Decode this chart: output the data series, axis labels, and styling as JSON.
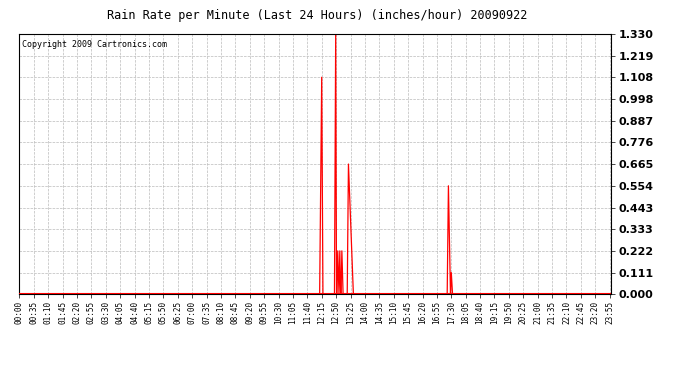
{
  "title": "Rain Rate per Minute (Last 24 Hours) (inches/hour) 20090922",
  "copyright": "Copyright 2009 Cartronics.com",
  "bg_color": "#ffffff",
  "plot_bg_color": "#ffffff",
  "line_color": "#ff0000",
  "grid_color": "#bbbbbb",
  "yticks": [
    0.0,
    0.111,
    0.222,
    0.333,
    0.443,
    0.554,
    0.665,
    0.776,
    0.887,
    0.998,
    1.108,
    1.219,
    1.33
  ],
  "ymax": 1.33,
  "ymin": 0.0,
  "xtick_labels": [
    "00:00",
    "00:35",
    "01:10",
    "01:45",
    "02:20",
    "02:55",
    "03:30",
    "04:05",
    "04:40",
    "05:15",
    "05:50",
    "06:25",
    "07:00",
    "07:35",
    "08:10",
    "08:45",
    "09:20",
    "09:55",
    "10:30",
    "11:05",
    "11:40",
    "12:15",
    "12:50",
    "13:25",
    "14:00",
    "14:35",
    "15:10",
    "15:45",
    "16:20",
    "16:55",
    "17:30",
    "18:05",
    "18:40",
    "19:15",
    "19:50",
    "20:25",
    "21:00",
    "21:35",
    "22:10",
    "22:45",
    "23:20",
    "23:55"
  ]
}
